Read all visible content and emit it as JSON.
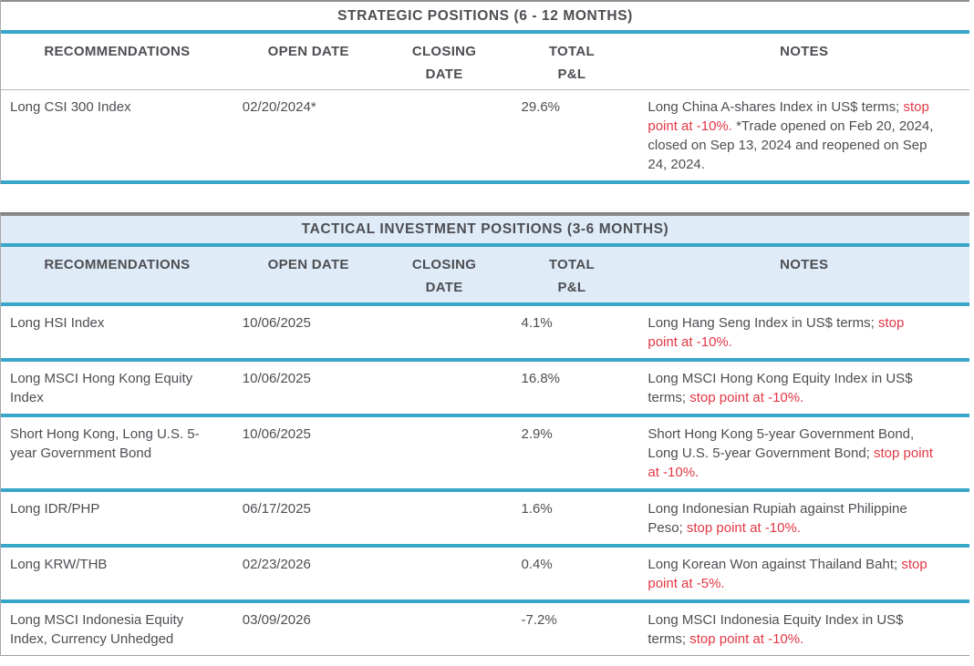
{
  "colors": {
    "accent_teal": "#38a6c8",
    "header_light_blue": "#dfecf7",
    "stop_point_red": "#e23744",
    "body_text": "#4d4e53"
  },
  "tables": [
    {
      "title": "STRATEGIC POSITIONS (6 - 12 MONTHS)",
      "headers": [
        {
          "line1": "RECOMMENDATIONS",
          "line2": ""
        },
        {
          "line1": "OPEN DATE",
          "line2": ""
        },
        {
          "line1": "CLOSING",
          "line2": "DATE"
        },
        {
          "line1": "TOTAL",
          "line2": "P&L"
        },
        {
          "line1": "NOTES",
          "line2": ""
        }
      ],
      "rows": [
        {
          "recommendation": "Long CSI 300 Index",
          "open_date": "02/20/2024*",
          "closing_date": "",
          "total_pl": "29.6%",
          "notes": [
            {
              "text": "Long China A-shares Index in US$ terms; ",
              "color": "dark"
            },
            {
              "text": "stop point at -10%.",
              "color": "red"
            },
            {
              "text": " *Trade opened on Feb 20, 2024, closed on Sep 13, 2024 and reopened on Sep 24, 2024.",
              "color": "dark"
            }
          ]
        }
      ]
    },
    {
      "title": "TACTICAL INVESTMENT POSITIONS (3-6 MONTHS)",
      "headers": [
        {
          "line1": "RECOMMENDATIONS",
          "line2": ""
        },
        {
          "line1": "OPEN DATE",
          "line2": ""
        },
        {
          "line1": "CLOSING",
          "line2": "DATE"
        },
        {
          "line1": "TOTAL",
          "line2": "P&L"
        },
        {
          "line1": "NOTES",
          "line2": ""
        }
      ],
      "rows": [
        {
          "recommendation": "Long HSI Index",
          "open_date": "10/06/2025",
          "closing_date": "",
          "total_pl": "4.1%",
          "notes": [
            {
              "text": "Long Hang Seng Index in US$ terms; ",
              "color": "dark"
            },
            {
              "text": "stop point at -10%.",
              "color": "red"
            }
          ]
        },
        {
          "recommendation": "Long MSCI Hong Kong Equity Index",
          "open_date": "10/06/2025",
          "closing_date": "",
          "total_pl": "16.8%",
          "notes": [
            {
              "text": "Long MSCI Hong Kong Equity Index in US$ terms; ",
              "color": "dark"
            },
            {
              "text": "stop point at -10%.",
              "color": "red"
            }
          ]
        },
        {
          "recommendation": "Short Hong Kong, Long U.S. 5-year Government Bond",
          "open_date": "10/06/2025",
          "closing_date": "",
          "total_pl": "2.9%",
          "notes": [
            {
              "text": "Short Hong Kong 5-year Government Bond, Long U.S. 5-year Government Bond; ",
              "color": "dark"
            },
            {
              "text": "stop point at -10%.",
              "color": "red"
            }
          ]
        },
        {
          "recommendation": "Long IDR/PHP",
          "open_date": "06/17/2025",
          "closing_date": "",
          "total_pl": "1.6%",
          "notes": [
            {
              "text": "Long Indonesian Rupiah against Philippine Peso; ",
              "color": "dark"
            },
            {
              "text": "stop point at -10%.",
              "color": "red"
            }
          ]
        },
        {
          "recommendation": "Long KRW/THB",
          "open_date": "02/23/2026",
          "closing_date": "",
          "total_pl": "0.4%",
          "notes": [
            {
              "text": "Long Korean Won against Thailand Baht; ",
              "color": "dark"
            },
            {
              "text": "stop point at -5%.",
              "color": "red"
            }
          ]
        },
        {
          "recommendation": "Long MSCI Indonesia Equity Index, Currency Unhedged",
          "open_date": "03/09/2026",
          "closing_date": "",
          "total_pl": "-7.2%",
          "notes": [
            {
              "text": "Long MSCI Indonesia Equity Index in US$ terms; ",
              "color": "dark"
            },
            {
              "text": "stop point at -10%.",
              "color": "red"
            }
          ]
        }
      ]
    }
  ]
}
